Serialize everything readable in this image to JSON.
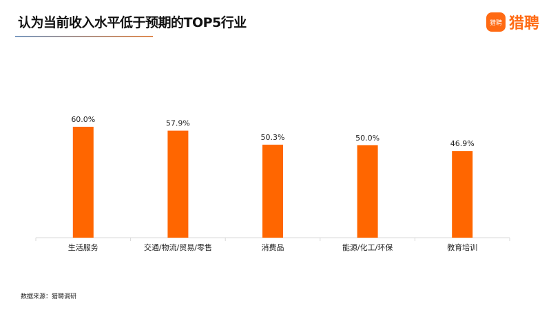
{
  "header": {
    "title": "认为当前收入水平低于预期的TOP5行业",
    "logo_text": "猎聘"
  },
  "footer": {
    "source": "数据来源：猎聘调研"
  },
  "chart_data": {
    "type": "bar",
    "title": "认为当前收入水平低于预期的TOP5行业",
    "categories": [
      "生活服务",
      "交通/物流/贸易/零售",
      "消费品",
      "能源/化工/环保",
      "教育培训"
    ],
    "values": [
      60.0,
      57.9,
      50.3,
      50.0,
      46.9
    ],
    "labels": [
      "60.0%",
      "57.9%",
      "50.3%",
      "50.0%",
      "46.9%"
    ],
    "ylim": [
      0,
      60
    ],
    "grid": false,
    "bar_color": "#ff6600",
    "axis_color": "#d9d9d9"
  }
}
